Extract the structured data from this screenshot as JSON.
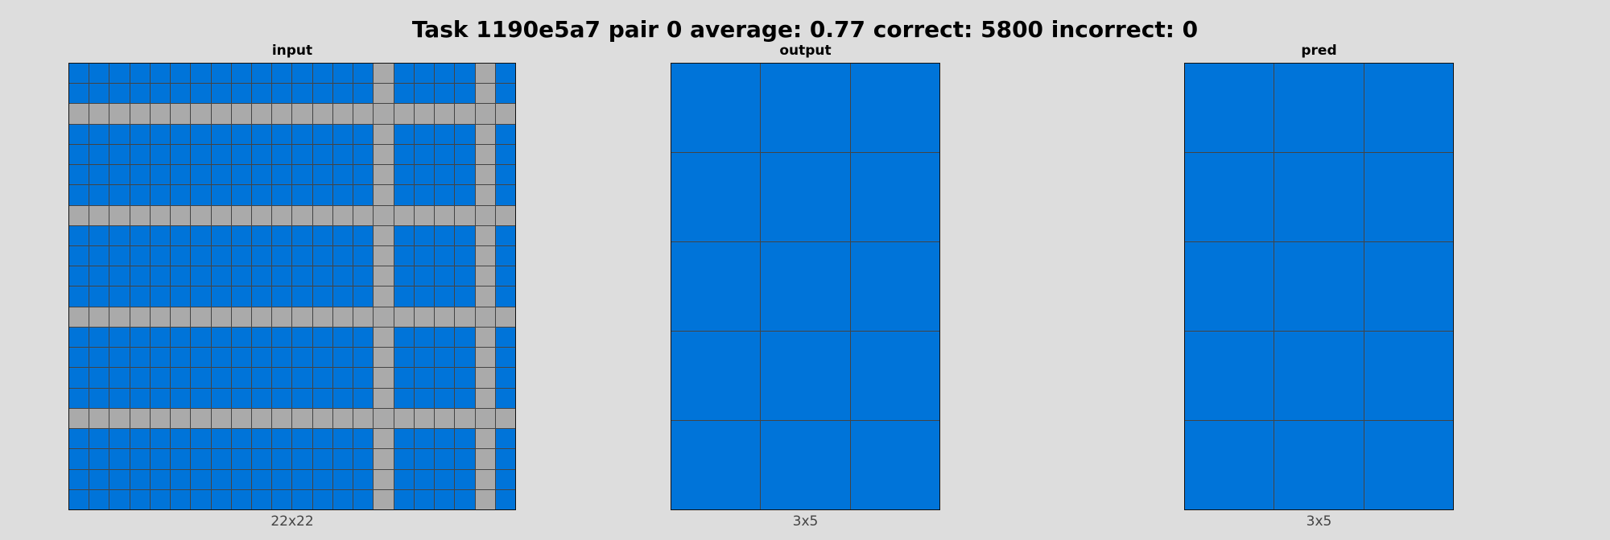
{
  "title": "Task 1190e5a7 pair 0 average: 0.77 correct: 5800 incorrect: 0",
  "palette": {
    "blue": "#0074d9",
    "gray": "#aaaaaa"
  },
  "panels": {
    "input": {
      "label": "input",
      "dims": "22x22",
      "rows": 22,
      "cols": 22,
      "gray_rows": [
        2,
        7,
        12,
        17
      ],
      "gray_cols": [
        15,
        20
      ]
    },
    "output": {
      "label": "output",
      "dims": "3x5",
      "rows": 5,
      "cols": 3
    },
    "pred": {
      "label": "pred",
      "dims": "3x5",
      "rows": 5,
      "cols": 3
    }
  }
}
